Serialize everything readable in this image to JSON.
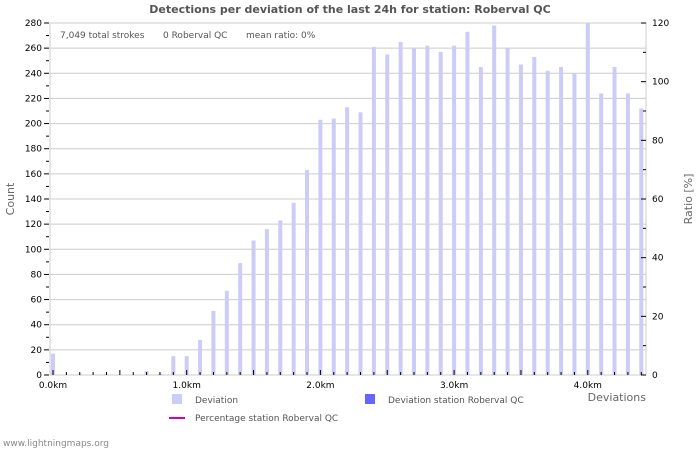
{
  "chart_data": {
    "type": "bar",
    "title": "Detections per deviation of the last 24h for station: Roberval QC",
    "xlabel": "Deviations",
    "ylabel": "Count",
    "y2label": "Ratio [%]",
    "ylim": [
      0,
      280
    ],
    "y2lim": [
      0,
      120
    ],
    "grid": true,
    "legend_position": "bottom",
    "x_tick_labels": [
      "0.0km",
      "1.0km",
      "2.0km",
      "3.0km",
      "4.0km"
    ],
    "y_tick_labels": [
      "0",
      "20",
      "40",
      "60",
      "80",
      "100",
      "120",
      "140",
      "160",
      "180",
      "200",
      "220",
      "240",
      "260",
      "280"
    ],
    "y2_tick_labels": [
      "0",
      "20",
      "40",
      "60",
      "80",
      "100",
      "120"
    ],
    "categories": [
      "0.0",
      "0.1",
      "0.2",
      "0.3",
      "0.4",
      "0.5",
      "0.6",
      "0.7",
      "0.8",
      "0.9",
      "1.0",
      "1.1",
      "1.2",
      "1.3",
      "1.4",
      "1.5",
      "1.6",
      "1.7",
      "1.8",
      "1.9",
      "2.0",
      "2.1",
      "2.2",
      "2.3",
      "2.4",
      "2.5",
      "2.6",
      "2.7",
      "2.8",
      "2.9",
      "3.0",
      "3.1",
      "3.2",
      "3.3",
      "3.4",
      "3.5",
      "3.6",
      "3.7",
      "3.8",
      "3.9",
      "4.0",
      "4.1",
      "4.2",
      "4.3",
      "4.4"
    ],
    "series": [
      {
        "name": "Deviation",
        "color": "#ccccf8",
        "values": [
          17,
          0,
          1,
          0,
          1,
          0,
          0,
          3,
          1,
          15,
          15,
          28,
          51,
          67,
          89,
          107,
          116,
          123,
          137,
          163,
          203,
          204,
          213,
          209,
          261,
          255,
          265,
          260,
          262,
          257,
          262,
          273,
          245,
          278,
          260,
          247,
          253,
          242,
          245,
          240,
          280,
          224,
          245,
          224,
          212
        ]
      },
      {
        "name": "Deviation station Roberval QC",
        "color": "#6666ff",
        "values": [
          0,
          0,
          0,
          0,
          0,
          0,
          0,
          0,
          0,
          0,
          0,
          0,
          0,
          0,
          0,
          0,
          0,
          0,
          0,
          0,
          0,
          0,
          0,
          0,
          0,
          0,
          0,
          0,
          0,
          0,
          0,
          0,
          0,
          0,
          0,
          0,
          0,
          0,
          0,
          0,
          0,
          0,
          0,
          0,
          0
        ]
      },
      {
        "name": "Percentage station Roberval QC",
        "color": "#cc00cc",
        "type": "line",
        "values": []
      }
    ],
    "annotations": {
      "total_strokes": "7,049 total strokes",
      "station_count": "0 Roberval QC",
      "mean_ratio": "mean ratio: 0%"
    }
  },
  "footer": "www.lightningmaps.org"
}
